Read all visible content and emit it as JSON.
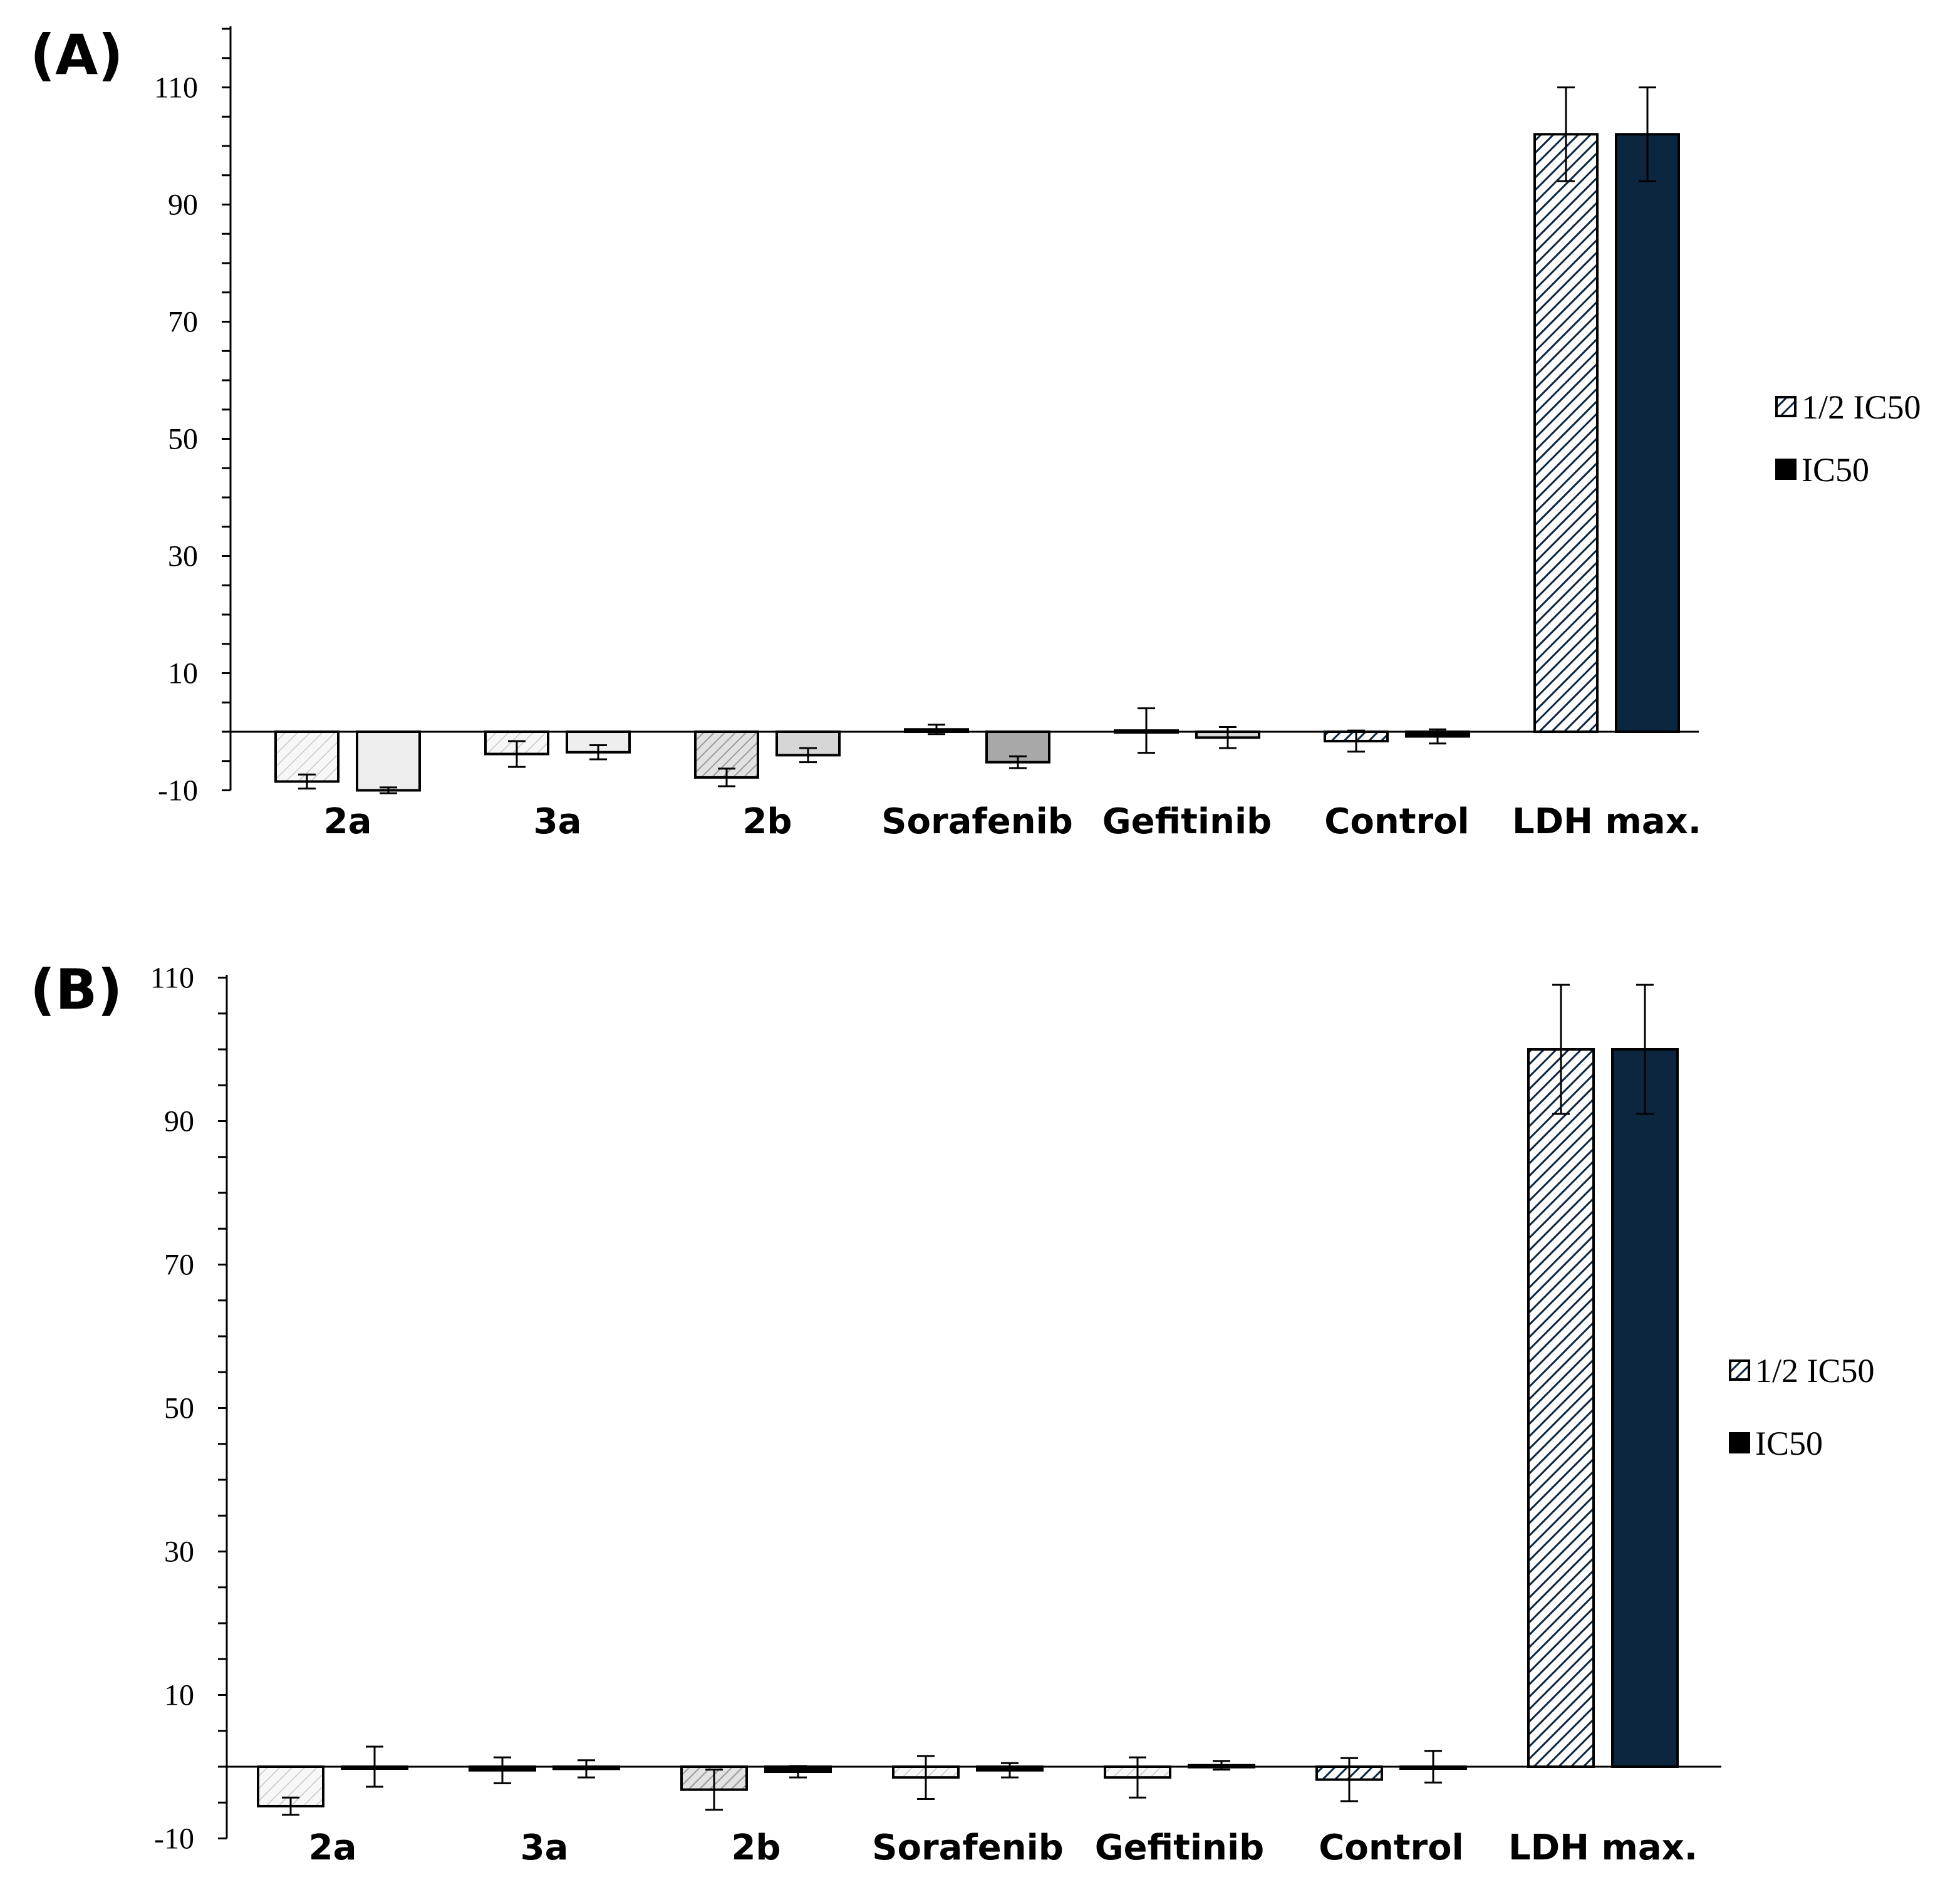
{
  "colors": {
    "navy": "#0d2640",
    "black": "#000000",
    "light_gray": "#eeeeee",
    "mid_gray": "#d6d6d6",
    "dark_gray": "#a8a8a8"
  },
  "chart_data": [
    {
      "type": "bar",
      "panel_label": "(A)",
      "categories": [
        "2a",
        "3a",
        "2b",
        "Sorafenib",
        "Gefitinib",
        "Control",
        "LDH max."
      ],
      "ylim": [
        -10,
        120
      ],
      "yticks": [
        "110",
        "90",
        "70",
        "50",
        "30",
        "10",
        "-10"
      ],
      "ytick_values": [
        110,
        90,
        70,
        50,
        30,
        10,
        -10
      ],
      "legend_position": "right",
      "series": [
        {
          "name": "1/2 IC50",
          "values": [
            -8.5,
            -3.8,
            -7.8,
            0.4,
            0.2,
            -1.6,
            102
          ],
          "errors": [
            1.2,
            2.2,
            1.5,
            0.8,
            3.8,
            1.8,
            8
          ],
          "fills": [
            "light-hatch",
            "light-hatch",
            "mid-hatch",
            "solid-black",
            "solid-black",
            "navy-hatch",
            "navy-hatch"
          ]
        },
        {
          "name": "IC50",
          "values": [
            -10,
            -3.5,
            -4,
            -5.2,
            -1,
            -0.8,
            102
          ],
          "errors": [
            0.5,
            1.2,
            1.2,
            1,
            1.8,
            1.2,
            8
          ],
          "fills": [
            "light-gray",
            "light-gray",
            "mid-gray",
            "dark-gray",
            "mid-gray",
            "solid-black",
            "solid-navy"
          ]
        }
      ],
      "legend": [
        {
          "label": "1/2 IC50",
          "swatch": "navy-hatch"
        },
        {
          "label": "IC50",
          "swatch": "solid-black"
        }
      ]
    },
    {
      "type": "bar",
      "panel_label": "(B)",
      "categories": [
        "2a",
        "3a",
        "2b",
        "Sorafenib",
        "Gefitinib",
        "Control",
        "LDH max."
      ],
      "ylim": [
        -10,
        110
      ],
      "yticks": [
        "110",
        "90",
        "70",
        "50",
        "30",
        "10",
        "-10"
      ],
      "ytick_values": [
        110,
        90,
        70,
        50,
        30,
        10,
        -10
      ],
      "legend_position": "right",
      "series": [
        {
          "name": "1/2 IC50",
          "values": [
            -5.5,
            -0.5,
            -3.2,
            -1.5,
            -1.5,
            -1.8,
            100
          ],
          "errors": [
            1.2,
            1.8,
            2.8,
            3,
            2.8,
            3,
            9
          ],
          "fills": [
            "light-hatch",
            "solid-black",
            "mid-hatch",
            "light-hatch",
            "light-hatch",
            "navy-hatch",
            "navy-hatch"
          ]
        },
        {
          "name": "IC50",
          "values": [
            0,
            -0.3,
            -0.7,
            -0.5,
            0.2,
            0,
            100
          ],
          "errors": [
            2.8,
            1.2,
            0.8,
            1,
            0.6,
            2.2,
            9
          ],
          "fills": [
            "solid-navy",
            "solid-black",
            "solid-black",
            "solid-black",
            "solid-black",
            "solid-navy",
            "solid-navy"
          ]
        }
      ],
      "legend": [
        {
          "label": "1/2 IC50",
          "swatch": "navy-hatch"
        },
        {
          "label": "IC50",
          "swatch": "solid-black"
        }
      ]
    }
  ]
}
